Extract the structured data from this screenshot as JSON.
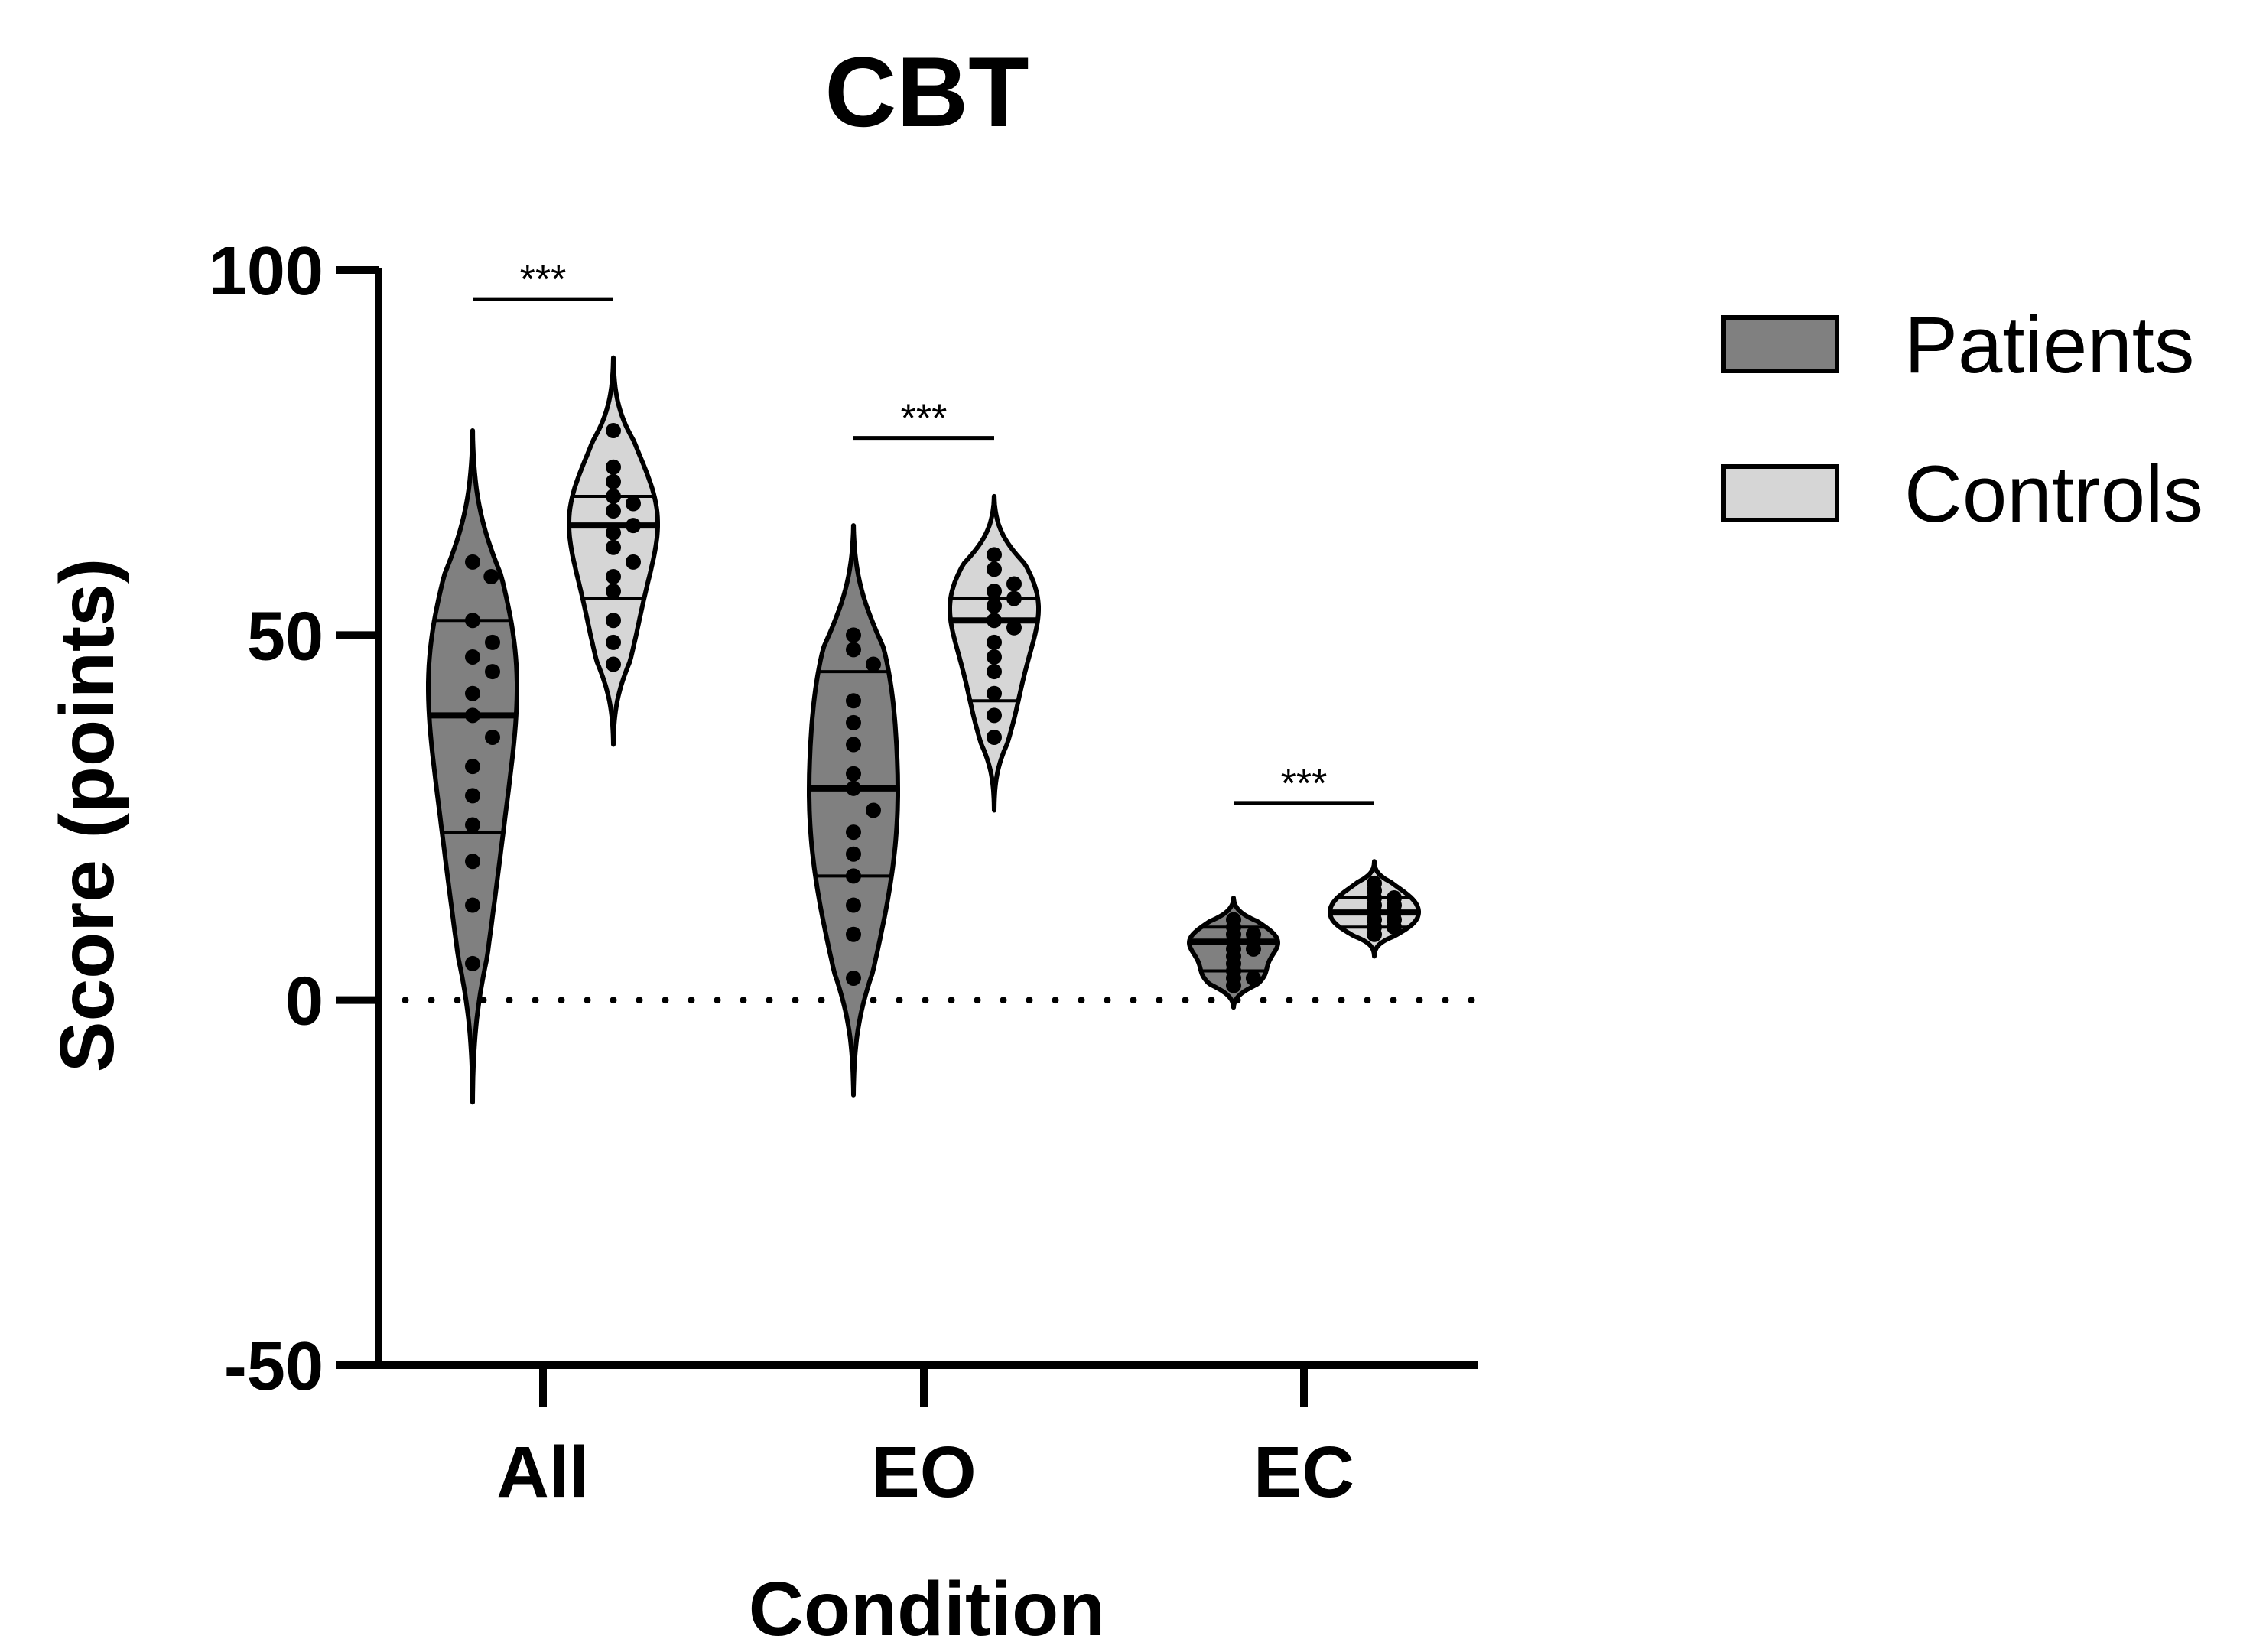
{
  "chart_data": {
    "type": "violin",
    "title": "CBT",
    "xlabel": "Condition",
    "ylabel": "Score (points)",
    "ylim": [
      -50,
      100
    ],
    "yticks": [
      -50,
      0,
      50,
      100
    ],
    "reference_line": {
      "y": 0,
      "style": "dotted"
    },
    "categories": [
      "All",
      "EO",
      "EC"
    ],
    "legend": {
      "position": "right",
      "entries": [
        "Patients",
        "Controls"
      ]
    },
    "colors": {
      "Patients": "#808080",
      "Controls": "#d6d6d6",
      "outline": "#000000"
    },
    "series": [
      {
        "name": "Patients",
        "groups": [
          {
            "category": "All",
            "min": -14,
            "max": 78,
            "median": 39,
            "q1": 23,
            "q3": 52,
            "points": [
              60,
              58,
              52,
              49,
              47,
              45,
              42,
              39,
              36,
              32,
              28,
              24,
              19,
              13,
              5
            ]
          },
          {
            "category": "EO",
            "min": -13,
            "max": 65,
            "median": 29,
            "q1": 17,
            "q3": 45,
            "points": [
              50,
              48,
              46,
              41,
              38,
              35,
              31,
              29,
              26,
              23,
              20,
              17,
              13,
              9,
              3
            ]
          },
          {
            "category": "EC",
            "min": -1,
            "max": 14,
            "median": 8,
            "q1": 4,
            "q3": 10,
            "points": [
              11,
              10,
              9,
              9,
              8,
              8,
              7,
              7,
              6,
              5,
              4,
              3,
              3,
              2
            ]
          }
        ]
      },
      {
        "name": "Controls",
        "groups": [
          {
            "category": "All",
            "min": 35,
            "max": 88,
            "median": 65,
            "q1": 55,
            "q3": 69,
            "points": [
              78,
              73,
              71,
              69,
              68,
              67,
              65,
              64,
              62,
              60,
              58,
              56,
              52,
              49,
              46
            ]
          },
          {
            "category": "EO",
            "min": 26,
            "max": 69,
            "median": 52,
            "q1": 41,
            "q3": 55,
            "points": [
              61,
              59,
              57,
              56,
              55,
              54,
              52,
              51,
              49,
              47,
              45,
              42,
              39,
              36
            ]
          },
          {
            "category": "EC",
            "min": 6,
            "max": 19,
            "median": 12,
            "q1": 10,
            "q3": 14,
            "points": [
              16,
              15,
              14,
              14,
              13,
              13,
              12,
              12,
              11,
              11,
              10,
              10,
              9
            ]
          }
        ]
      }
    ],
    "annotations": [
      {
        "category": "All",
        "text": "***"
      },
      {
        "category": "EO",
        "text": "***"
      },
      {
        "category": "EC",
        "text": "***"
      }
    ]
  }
}
